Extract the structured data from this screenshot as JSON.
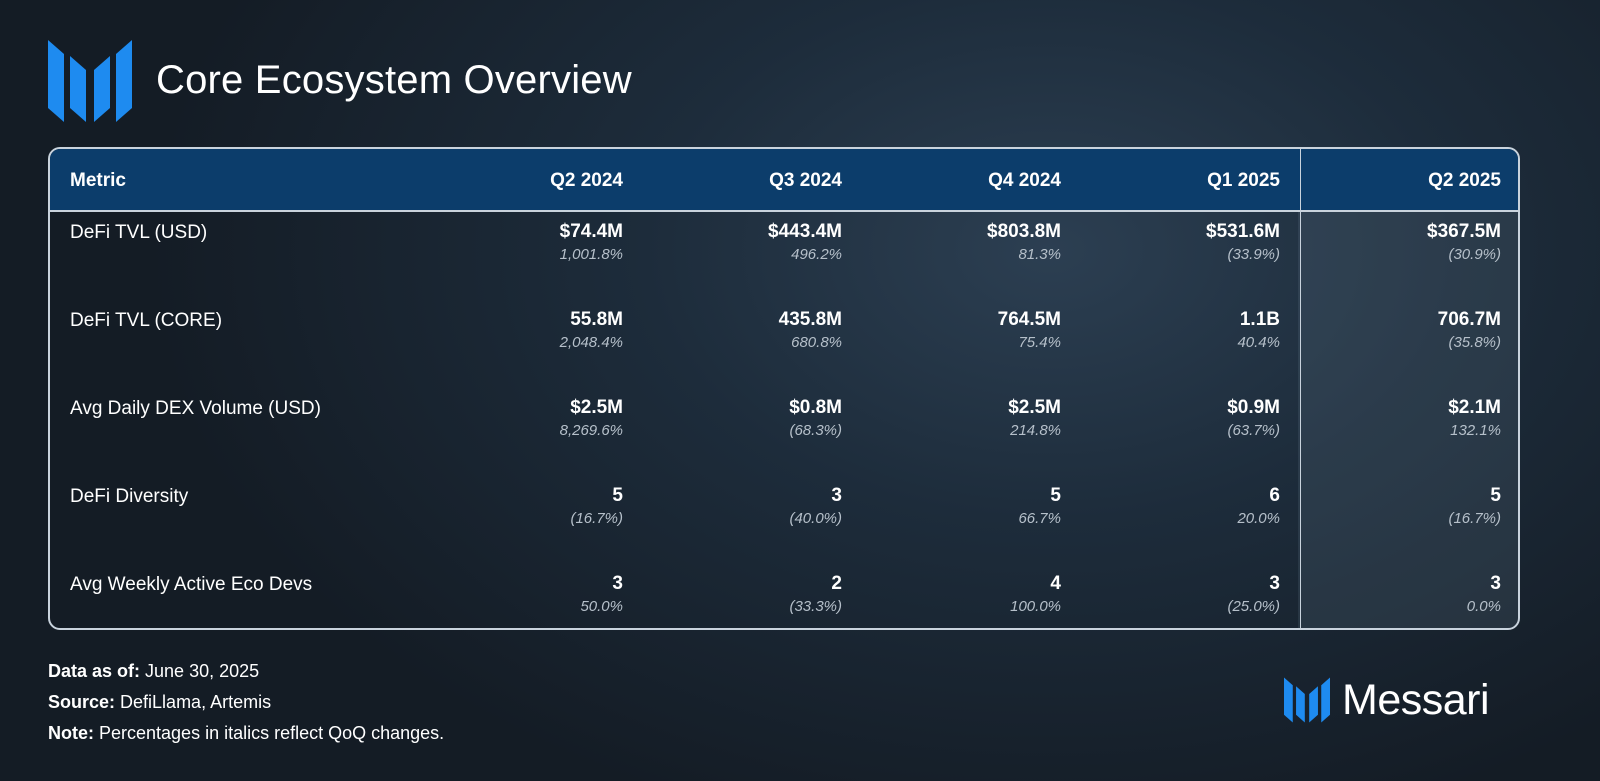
{
  "title": "Core Ecosystem Overview",
  "chart_data": {
    "type": "table",
    "columns": [
      "Metric",
      "Q2 2024",
      "Q3 2024",
      "Q4 2024",
      "Q1 2025",
      "Q2 2025"
    ],
    "highlighted_column": "Q2 2025",
    "rows": [
      {
        "metric": "DeFi TVL (USD)",
        "values": [
          "$74.4M",
          "$443.4M",
          "$803.8M",
          "$531.6M",
          "$367.5M"
        ],
        "changes": [
          "1,001.8%",
          "496.2%",
          "81.3%",
          "(33.9%)",
          "(30.9%)"
        ]
      },
      {
        "metric": "DeFi TVL (CORE)",
        "values": [
          "55.8M",
          "435.8M",
          "764.5M",
          "1.1B",
          "706.7M"
        ],
        "changes": [
          "2,048.4%",
          "680.8%",
          "75.4%",
          "40.4%",
          "(35.8%)"
        ]
      },
      {
        "metric": "Avg Daily DEX Volume (USD)",
        "values": [
          "$2.5M",
          "$0.8M",
          "$2.5M",
          "$0.9M",
          "$2.1M"
        ],
        "changes": [
          "8,269.6%",
          "(68.3%)",
          "214.8%",
          "(63.7%)",
          "132.1%"
        ]
      },
      {
        "metric": "DeFi Diversity",
        "values": [
          "5",
          "3",
          "5",
          "6",
          "5"
        ],
        "changes": [
          "(16.7%)",
          "(40.0%)",
          "66.7%",
          "20.0%",
          "(16.7%)"
        ]
      },
      {
        "metric": "Avg Weekly Active Eco Devs",
        "values": [
          "3",
          "2",
          "4",
          "3",
          "3"
        ],
        "changes": [
          "50.0%",
          "(33.3%)",
          "100.0%",
          "(25.0%)",
          "0.0%"
        ]
      }
    ]
  },
  "footer": {
    "data_as_of_label": "Data as of:",
    "data_as_of_value": " June 30, 2025",
    "source_label": "Source:",
    "source_value": " DefiLlama, Artemis",
    "note_label": "Note:",
    "note_value": " Percentages in italics reflect QoQ changes."
  },
  "brand": {
    "name": "Messari"
  },
  "icons": {
    "header_logo": "messari-logo-icon",
    "brand_logo": "messari-logo-icon"
  },
  "colors": {
    "header_bg": "#0c3d6b",
    "accent_blue": "#1e8bf0",
    "border": "#c9d3dd"
  }
}
